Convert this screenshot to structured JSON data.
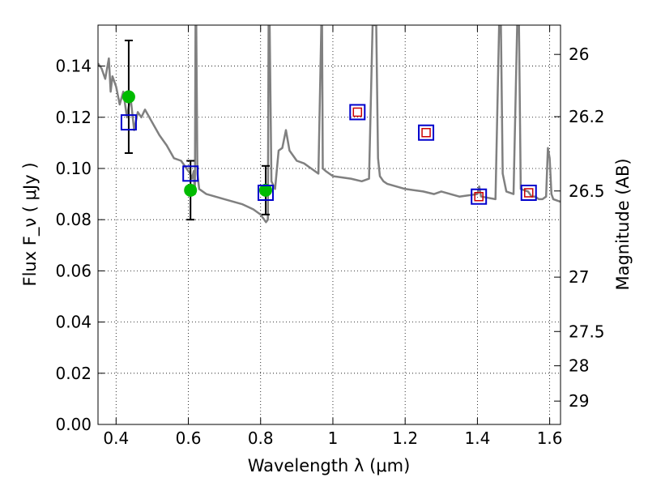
{
  "chart_data": {
    "type": "scatter",
    "xlabel": "Wavelength  λ (μm)",
    "ylabel": "Flux  F_ν  ( μJy )",
    "ylabel_right": "Magnitude (AB)",
    "xlim": [
      0.35,
      1.63
    ],
    "ylim": [
      0.0,
      0.156
    ],
    "grid": true,
    "x_ticks": [
      0.4,
      0.6,
      0.8,
      1.0,
      1.2,
      1.4,
      1.6
    ],
    "x_tick_labels": [
      "0.4",
      "0.6",
      "0.8",
      "1",
      "1.2",
      "1.4",
      "1.6"
    ],
    "y_ticks": [
      0.0,
      0.02,
      0.04,
      0.06,
      0.08,
      0.1,
      0.12,
      0.14
    ],
    "y_tick_labels": [
      "0.00",
      "0.02",
      "0.04",
      "0.06",
      "0.08",
      "0.10",
      "0.12",
      "0.14"
    ],
    "mag_ticks": [
      26,
      26.2,
      26.5,
      27,
      27.5,
      28,
      29
    ],
    "mag_tick_labels": [
      "26",
      "26.2",
      "26.5",
      "27",
      "27.5",
      "28",
      "29"
    ],
    "colors": {
      "model": "#808080",
      "observed": "#00bb00",
      "model_band_box": "#0000cc",
      "model_band_inner": "#cc0000",
      "errorbar": "#000000"
    },
    "model_spectrum": {
      "x": [
        0.35,
        0.36,
        0.37,
        0.38,
        0.385,
        0.39,
        0.4,
        0.41,
        0.42,
        0.43,
        0.44,
        0.45,
        0.46,
        0.47,
        0.48,
        0.5,
        0.52,
        0.54,
        0.56,
        0.58,
        0.6,
        0.605,
        0.61,
        0.615,
        0.618,
        0.62,
        0.622,
        0.625,
        0.63,
        0.65,
        0.7,
        0.75,
        0.78,
        0.8,
        0.81,
        0.815,
        0.82,
        0.822,
        0.825,
        0.83,
        0.84,
        0.85,
        0.86,
        0.87,
        0.88,
        0.9,
        0.92,
        0.94,
        0.96,
        0.968,
        0.97,
        0.972,
        0.98,
        1.0,
        1.05,
        1.08,
        1.1,
        1.11,
        1.12,
        1.125,
        1.13,
        1.14,
        1.15,
        1.2,
        1.25,
        1.28,
        1.3,
        1.35,
        1.4,
        1.405,
        1.41,
        1.45,
        1.46,
        1.465,
        1.47,
        1.48,
        1.5,
        1.51,
        1.515,
        1.52,
        1.54,
        1.55,
        1.56,
        1.57,
        1.58,
        1.59,
        1.595,
        1.6,
        1.605,
        1.61,
        1.63
      ],
      "y": [
        0.141,
        0.139,
        0.135,
        0.143,
        0.13,
        0.136,
        0.132,
        0.125,
        0.13,
        0.12,
        0.128,
        0.115,
        0.122,
        0.12,
        0.123,
        0.118,
        0.113,
        0.109,
        0.104,
        0.103,
        0.099,
        0.098,
        0.096,
        0.099,
        0.09,
        0.156,
        0.156,
        0.098,
        0.092,
        0.09,
        0.088,
        0.086,
        0.084,
        0.082,
        0.08,
        0.079,
        0.08,
        0.156,
        0.156,
        0.095,
        0.092,
        0.107,
        0.108,
        0.115,
        0.107,
        0.103,
        0.102,
        0.1,
        0.098,
        0.156,
        0.156,
        0.1,
        0.099,
        0.097,
        0.096,
        0.095,
        0.096,
        0.156,
        0.156,
        0.104,
        0.097,
        0.095,
        0.094,
        0.092,
        0.091,
        0.09,
        0.091,
        0.089,
        0.09,
        0.093,
        0.089,
        0.088,
        0.156,
        0.156,
        0.098,
        0.091,
        0.09,
        0.156,
        0.156,
        0.092,
        0.091,
        0.089,
        0.089,
        0.088,
        0.088,
        0.089,
        0.108,
        0.104,
        0.09,
        0.088,
        0.087
      ]
    },
    "observed": [
      {
        "x": 0.435,
        "y": 0.128,
        "err": 0.022
      },
      {
        "x": 0.606,
        "y": 0.0915,
        "err": 0.0115
      },
      {
        "x": 0.814,
        "y": 0.0915,
        "err": 0.0095
      }
    ],
    "model_bands": [
      {
        "x": 0.435,
        "y": 0.118
      },
      {
        "x": 0.606,
        "y": 0.098
      },
      {
        "x": 0.814,
        "y": 0.0905
      },
      {
        "x": 1.068,
        "y": 0.122
      },
      {
        "x": 1.258,
        "y": 0.114
      },
      {
        "x": 1.404,
        "y": 0.089
      },
      {
        "x": 1.542,
        "y": 0.0905
      }
    ]
  }
}
